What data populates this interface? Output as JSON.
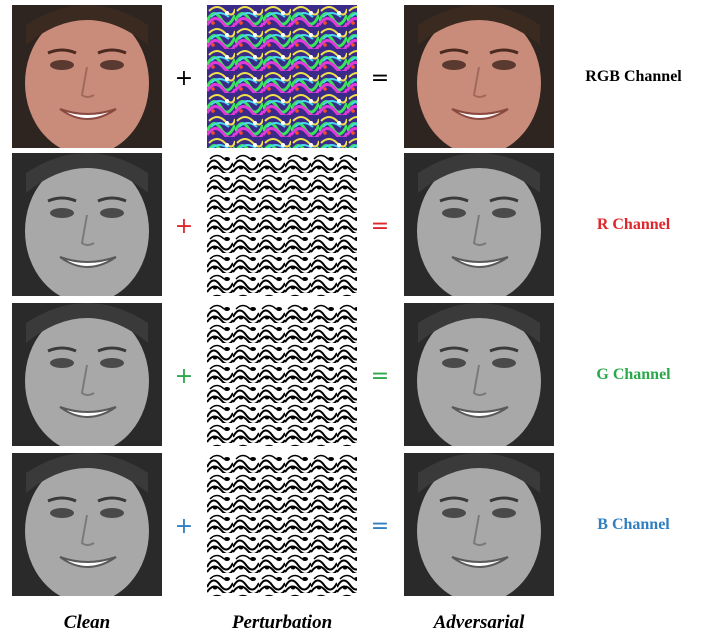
{
  "rows": [
    {
      "label": "RGB Channel",
      "label_color": "#000000",
      "op_color": "#000000",
      "plus": "+",
      "equals": "=",
      "tint": "color"
    },
    {
      "label": "R Channel",
      "label_color": "#e0262a",
      "op_color": "#e0262a",
      "plus": "+",
      "equals": "=",
      "tint": "gray"
    },
    {
      "label": "G Channel",
      "label_color": "#2aa84a",
      "op_color": "#2aa84a",
      "plus": "+",
      "equals": "=",
      "tint": "gray"
    },
    {
      "label": "B Channel",
      "label_color": "#2f7fc1",
      "op_color": "#2f7fc1",
      "plus": "+",
      "equals": "=",
      "tint": "gray"
    }
  ],
  "columns": {
    "clean": "Clean",
    "perturbation": "Perturbation",
    "adversarial": "Adversarial"
  },
  "icons": {
    "clean": "face-photo-icon",
    "perturbation": "noise-pattern-icon",
    "adversarial": "face-photo-icon"
  }
}
